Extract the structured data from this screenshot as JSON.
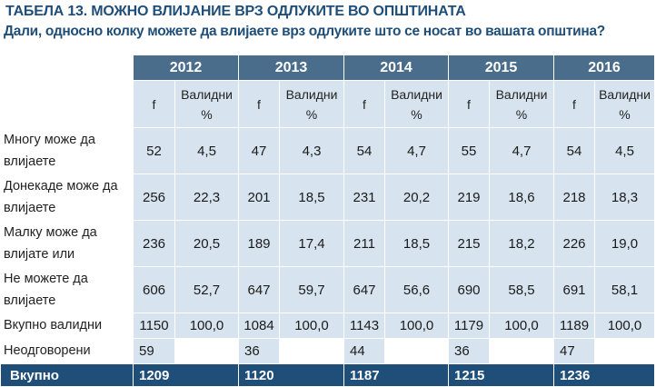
{
  "title_prefix": "ТАБЕЛА 13.",
  "title_text": "МОЖНО ВЛИЈАНИЕ ВРЗ ОДЛУКИТЕ ВО ОПШТИНАТА",
  "subtitle": "Дали, односно колку можете да влијаете врз одлуките што се носат во вашата општина?",
  "years": [
    "2012",
    "2013",
    "2014",
    "2015",
    "2016"
  ],
  "col_f": "f",
  "col_valid": "Валидни %",
  "rows": [
    {
      "label": "Многу може да влијаете",
      "vals": [
        "52",
        "4,5",
        "47",
        "4,3",
        "54",
        "4,7",
        "55",
        "4,7",
        "54",
        "4,5"
      ]
    },
    {
      "label": "Донекаде може да влијаете",
      "vals": [
        "256",
        "22,3",
        "201",
        "18,5",
        "231",
        "20,2",
        "219",
        "18,6",
        "218",
        "18,3"
      ]
    },
    {
      "label": "Малку може да влијате или",
      "vals": [
        "236",
        "20,5",
        "189",
        "17,4",
        "211",
        "18,5",
        "215",
        "18,2",
        "226",
        "19,0"
      ]
    },
    {
      "label": "Не можете да влијаете",
      "vals": [
        "606",
        "52,7",
        "647",
        "59,7",
        "647",
        "56,6",
        "690",
        "58,5",
        "691",
        "58,1"
      ]
    },
    {
      "label": "Вкупно валидни",
      "vals": [
        "1150",
        "100,0",
        "1084",
        "100,0",
        "1143",
        "100,0",
        "1179",
        "100,0",
        "1189",
        "100,0"
      ]
    },
    {
      "label": "Неодговорени",
      "vals": [
        "59",
        "",
        "36",
        "",
        "44",
        "",
        "36",
        "",
        "47",
        ""
      ]
    }
  ],
  "total": {
    "label": "Вкупно",
    "vals": [
      "1209",
      "1120",
      "1187",
      "1215",
      "1236"
    ]
  }
}
